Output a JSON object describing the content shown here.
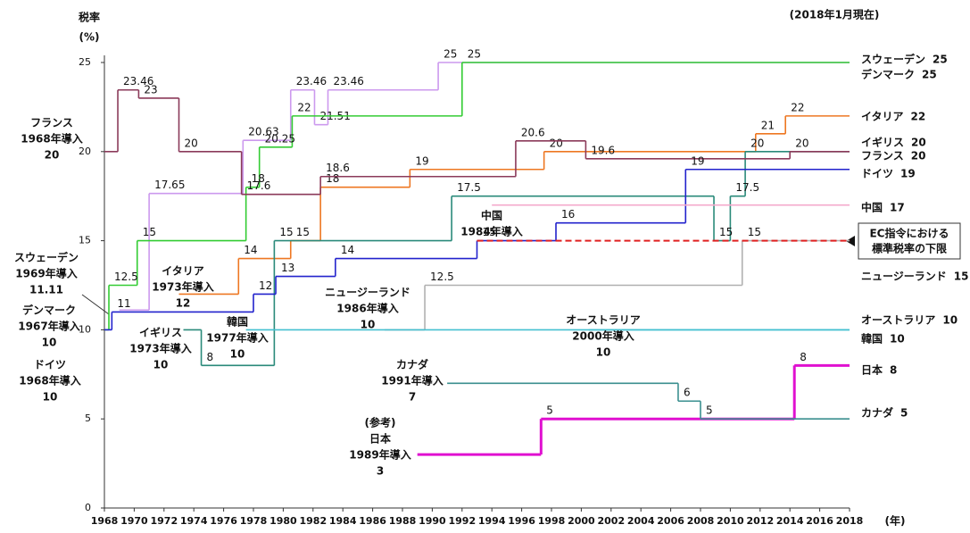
{
  "chart_data": {
    "type": "line",
    "step": true,
    "y_label_lines": [
      "税率",
      "(%)"
    ],
    "note": "(2018年1月現在)",
    "x_unit": "(年)",
    "xlim": [
      1968,
      2018
    ],
    "ylim": [
      0,
      25
    ],
    "xticks": [
      1968,
      1970,
      1972,
      1974,
      1976,
      1978,
      1980,
      1982,
      1984,
      1986,
      1988,
      1990,
      1992,
      1994,
      1996,
      1998,
      2000,
      2002,
      2004,
      2006,
      2008,
      2010,
      2012,
      2014,
      2016,
      2018
    ],
    "yticks": [
      0,
      5,
      10,
      15,
      20,
      25
    ],
    "series": [
      {
        "name": "スウェーデン",
        "color": "#cc99ee",
        "x": [
          1969,
          1971,
          1977.3,
          1980.5,
          1982.1,
          1983,
          1990.4,
          2018
        ],
        "values": [
          11.11,
          17.65,
          20.63,
          23.46,
          21.51,
          23.46,
          25,
          25
        ]
      },
      {
        "name": "デンマーク",
        "color": "#33cc33",
        "x": [
          1968,
          1968.3,
          1970.2,
          1977.5,
          1978.4,
          1980.6,
          1992,
          2018
        ],
        "values": [
          10,
          12.5,
          15,
          18,
          20.25,
          22,
          25,
          25
        ]
      },
      {
        "name": "イタリア",
        "color": "#ee7722",
        "x": [
          1973,
          1977,
          1980.5,
          1982.5,
          1988.5,
          1997.5,
          2011.7,
          2013.7,
          2018
        ],
        "values": [
          12,
          14,
          15,
          18,
          19,
          20,
          21,
          22,
          22
        ]
      },
      {
        "name": "イギリス",
        "color": "#2a8a7a",
        "x": [
          1973.3,
          1974.5,
          1979.4,
          1991.3,
          2008.9,
          2010,
          2011,
          2018
        ],
        "values": [
          10,
          8,
          15,
          17.5,
          15,
          17.5,
          20,
          20
        ]
      },
      {
        "name": "フランス",
        "color": "#8b3a5a",
        "x": [
          1968,
          1968.9,
          1970.3,
          1973,
          1977.2,
          1982.5,
          1995.6,
          2000.3,
          2014,
          2018
        ],
        "values": [
          20,
          23.46,
          23,
          20,
          17.6,
          18.6,
          20.6,
          19.6,
          20,
          20
        ]
      },
      {
        "name": "ドイツ",
        "color": "#2222cc",
        "x": [
          1968,
          1968.5,
          1978,
          1979.5,
          1983.5,
          1993,
          1998.3,
          2007,
          2018
        ],
        "values": [
          10,
          11,
          12,
          13,
          14,
          15,
          16,
          19,
          19
        ]
      },
      {
        "name": "中国",
        "color": "#f4aacc",
        "x": [
          1994,
          2018
        ],
        "values": [
          17,
          17
        ]
      },
      {
        "name": "ニュージーランド",
        "color": "#b0b0b0",
        "x": [
          1986.8,
          1989.5,
          2010.8,
          2018
        ],
        "values": [
          10,
          12.5,
          15,
          15
        ]
      },
      {
        "name": "オーストラリア",
        "color": "#44c0d0",
        "x": [
          2000.5,
          2018
        ],
        "values": [
          10,
          10
        ]
      },
      {
        "name": "韓国",
        "color": "#44c0d0",
        "x": [
          1977.5,
          2018
        ],
        "values": [
          10,
          10
        ]
      },
      {
        "name": "日本",
        "color": "#e010d0",
        "width": 3,
        "x": [
          1989,
          1997.3,
          2014.3,
          2018
        ],
        "values": [
          3,
          5,
          8,
          8
        ]
      },
      {
        "name": "カナダ",
        "color": "#3a8f8f",
        "x": [
          1991,
          2006.5,
          2008,
          2018
        ],
        "values": [
          7,
          6,
          5,
          5
        ]
      },
      {
        "label_lines": [
          "EC指令における",
          "標準税率の下限"
        ],
        "color": "#e02020",
        "dashed": true,
        "width": 2,
        "x": [
          1993,
          2018
        ],
        "values": [
          15,
          15
        ]
      }
    ],
    "annotations": [
      [
        "フランス",
        "1968年導入",
        "20"
      ],
      [
        "スウェーデン",
        "1969年導入",
        "11.11"
      ],
      [
        "デンマーク",
        "1967年導入",
        "10"
      ],
      [
        "ドイツ",
        "1968年導入",
        "10"
      ],
      [
        "イタリア",
        "1973年導入",
        "12"
      ],
      [
        "イギリス",
        "1973年導入",
        "10"
      ],
      [
        "韓国",
        "1977年導入",
        "10"
      ],
      [
        "ニュージーランド",
        "1986年導入",
        "10"
      ],
      [
        "オーストラリア",
        "2000年導入",
        "10"
      ],
      [
        "中国",
        "1984年導入"
      ],
      [
        "カナダ",
        "1991年導入",
        "7"
      ],
      [
        "(参考)",
        "日本",
        "1989年導入",
        "3"
      ]
    ]
  }
}
